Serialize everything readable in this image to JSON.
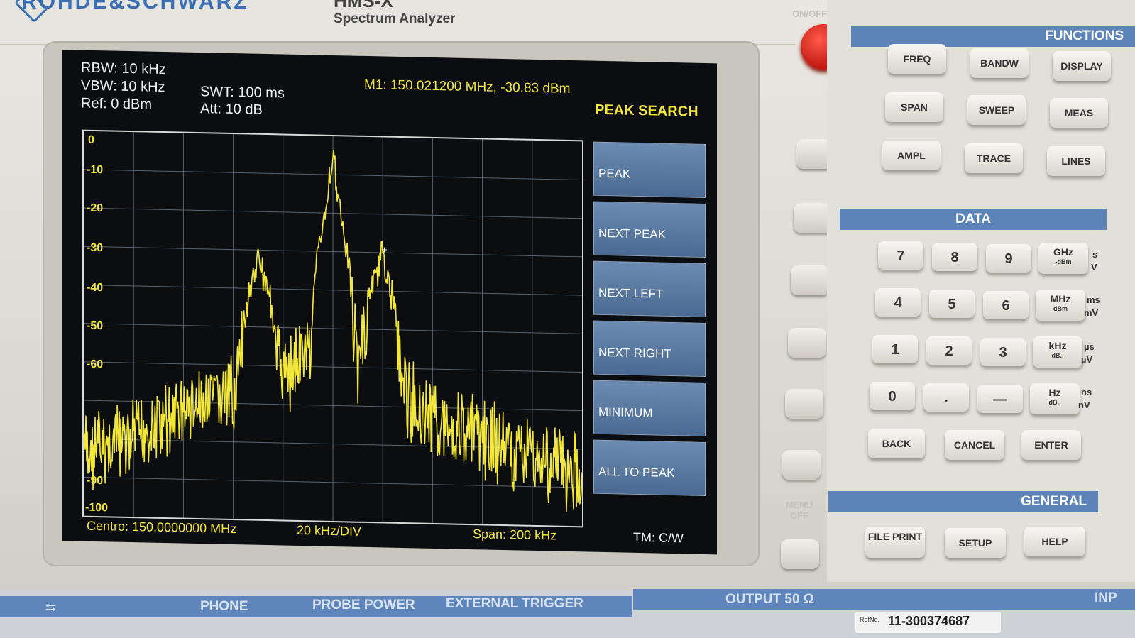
{
  "header": {
    "brand": "ROHDE&SCHWARZ",
    "model": "HMS-X",
    "subtitle": "Spectrum Analyzer"
  },
  "screen": {
    "rbw": "RBW: 10 kHz",
    "vbw": "VBW: 10 kHz",
    "ref": "Ref: 0 dBm",
    "swt": "SWT: 100 ms",
    "att": "Att: 10 dB",
    "marker": "M1: 150.021200 MHz, -30.83 dBm",
    "menu_title": "PEAK SEARCH",
    "softkeys": [
      "PEAK",
      "NEXT PEAK",
      "NEXT LEFT",
      "NEXT RIGHT",
      "MINIMUM",
      "ALL TO PEAK"
    ],
    "y_ticks": [
      "0",
      "-10",
      "-20",
      "-30",
      "-40",
      "-50",
      "-60",
      "-90",
      "-100"
    ],
    "footer": {
      "center": "Centro: 150.0000000 MHz",
      "div": "20 kHz/DIV",
      "span": "Span: 200 kHz",
      "tm": "TM: C/W"
    }
  },
  "right_panel": {
    "functions_title": "FUNCTIONS",
    "functions": [
      "FREQ",
      "BANDW",
      "DISPLAY",
      "SPAN",
      "SWEEP",
      "MEAS",
      "AMPL",
      "TRACE",
      "LINES"
    ],
    "data_title": "DATA",
    "digits": [
      "7",
      "8",
      "9",
      "4",
      "5",
      "6",
      "1",
      "2",
      "3",
      "0",
      ".",
      "—"
    ],
    "units": [
      {
        "main": "GHz",
        "sub": "-dBm",
        "side1": "s",
        "side2": "V"
      },
      {
        "main": "MHz",
        "sub": "dBm",
        "side1": "ms",
        "side2": "mV"
      },
      {
        "main": "kHz",
        "sub": "dB..",
        "side1": "µs",
        "side2": "µV"
      },
      {
        "main": "Hz",
        "sub": "dB..",
        "side1": "ns",
        "side2": "nV"
      }
    ],
    "data_actions": [
      "BACK",
      "CANCEL",
      "ENTER"
    ],
    "general_title": "GENERAL",
    "general": [
      "FILE PRINT",
      "SETUP",
      "HELP"
    ]
  },
  "labels": {
    "on_off": "ON/OFF",
    "menu_off": "MENU OFF"
  },
  "bottom": {
    "phone": "PHONE",
    "probe_power": "PROBE POWER",
    "external_trigger": "EXTERNAL TRIGGER",
    "output": "OUTPUT 50 Ω",
    "ref_no": "11-300374687",
    "ref_label": "RefNo.",
    "inp": "INP"
  },
  "colors": {
    "trace": "#f3e73a",
    "softkey": "#5a7aa3",
    "panel_head": "#5d84b8",
    "power": "#d11f14"
  },
  "chart_data": {
    "type": "line",
    "xlabel": "",
    "ylabel": "",
    "ylim": [
      -100,
      0
    ],
    "xlim": [
      149.9,
      150.1
    ],
    "series": [
      {
        "x": [
          149.9,
          149.92,
          149.94,
          149.96,
          149.97,
          149.98,
          149.99,
          150.0,
          150.01,
          150.02,
          150.03,
          150.04,
          150.06,
          150.08,
          150.1
        ],
        "values": [
          -78,
          -74,
          -66,
          -62,
          -32,
          -56,
          -50,
          -6,
          -52,
          -31,
          -62,
          -66,
          -72,
          -76,
          -80
        ]
      }
    ]
  }
}
